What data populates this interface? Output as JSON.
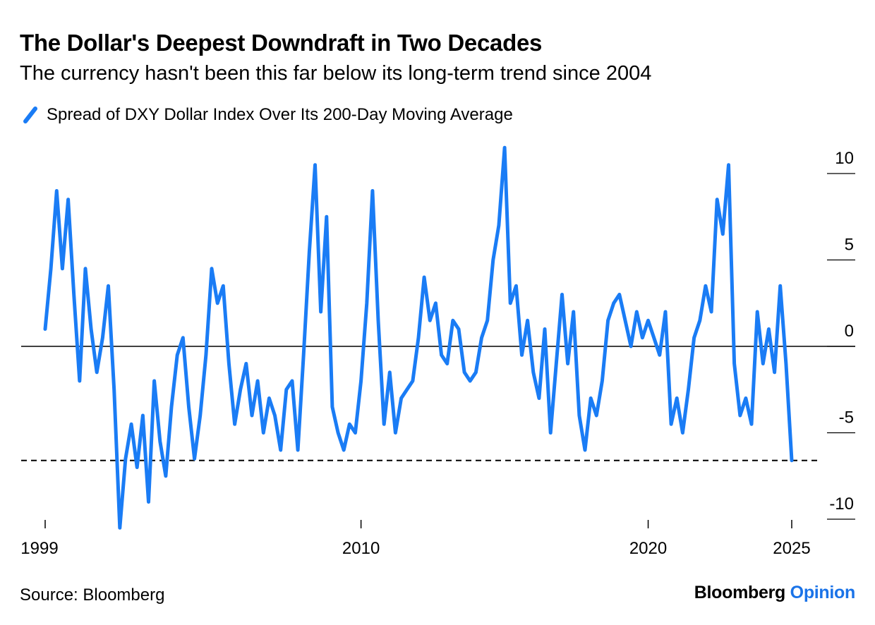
{
  "title": "The Dollar's Deepest Downdraft in Two Decades",
  "subtitle": "The currency hasn't been this far below its long-term trend since 2004",
  "source": "Source: Bloomberg",
  "brand": {
    "name": "Bloomberg",
    "section": "Opinion"
  },
  "colors": {
    "series": "#1a7cf5",
    "axis": "#000000",
    "brand_accent": "#1a73e8"
  },
  "chart_data": {
    "type": "line",
    "title": "The Dollar's Deepest Downdraft in Two Decades",
    "subtitle": "The currency hasn't been this far below its long-term trend since 2004",
    "xlabel": "",
    "ylabel": "",
    "xlim": [
      1998.8,
      2026.1
    ],
    "ylim": [
      -10.5,
      11.5
    ],
    "y_ticks": [
      10,
      5,
      0,
      -5,
      -10
    ],
    "y_tick_labels": [
      "10",
      "5",
      "0",
      "-5",
      "-10"
    ],
    "x_ticks": [
      1999,
      2010,
      2020,
      2025
    ],
    "x_tick_labels": [
      "1999",
      "2010",
      "2020",
      "2025"
    ],
    "grid": false,
    "legend_position": "top-left",
    "reference_lines": [
      {
        "y": 0,
        "style": "solid"
      },
      {
        "y": -6.6,
        "style": "dashed"
      }
    ],
    "series": [
      {
        "name": "Spread of DXY Dollar Index Over Its 200-Day Moving Average",
        "color": "#1a7cf5",
        "x": [
          1999.0,
          1999.2,
          1999.4,
          1999.6,
          1999.8,
          2000.0,
          2000.2,
          2000.4,
          2000.6,
          2000.8,
          2001.0,
          2001.2,
          2001.4,
          2001.6,
          2001.8,
          2002.0,
          2002.2,
          2002.4,
          2002.6,
          2002.8,
          2003.0,
          2003.2,
          2003.4,
          2003.6,
          2003.8,
          2004.0,
          2004.2,
          2004.4,
          2004.6,
          2004.8,
          2005.0,
          2005.2,
          2005.4,
          2005.6,
          2005.8,
          2006.0,
          2006.2,
          2006.4,
          2006.6,
          2006.8,
          2007.0,
          2007.2,
          2007.4,
          2007.6,
          2007.8,
          2008.0,
          2008.2,
          2008.4,
          2008.6,
          2008.8,
          2009.0,
          2009.2,
          2009.4,
          2009.6,
          2009.8,
          2010.0,
          2010.2,
          2010.4,
          2010.6,
          2010.8,
          2011.0,
          2011.2,
          2011.4,
          2011.6,
          2011.8,
          2012.0,
          2012.2,
          2012.4,
          2012.6,
          2012.8,
          2013.0,
          2013.2,
          2013.4,
          2013.6,
          2013.8,
          2014.0,
          2014.2,
          2014.4,
          2014.6,
          2014.8,
          2015.0,
          2015.2,
          2015.4,
          2015.6,
          2015.8,
          2016.0,
          2016.2,
          2016.4,
          2016.6,
          2016.8,
          2017.0,
          2017.2,
          2017.4,
          2017.6,
          2017.8,
          2018.0,
          2018.2,
          2018.4,
          2018.6,
          2018.8,
          2019.0,
          2019.2,
          2019.4,
          2019.6,
          2019.8,
          2020.0,
          2020.2,
          2020.4,
          2020.6,
          2020.8,
          2021.0,
          2021.2,
          2021.4,
          2021.6,
          2021.8,
          2022.0,
          2022.2,
          2022.4,
          2022.6,
          2022.8,
          2023.0,
          2023.2,
          2023.4,
          2023.6,
          2023.8,
          2024.0,
          2024.2,
          2024.4,
          2024.6,
          2024.8,
          2025.0
        ],
        "values": [
          1.0,
          4.5,
          9.0,
          4.5,
          8.5,
          3.0,
          -2.0,
          4.5,
          1.0,
          -1.5,
          0.5,
          3.5,
          -2.5,
          -10.5,
          -6.5,
          -4.5,
          -7.0,
          -4.0,
          -9.0,
          -2.0,
          -5.5,
          -7.5,
          -3.5,
          -0.5,
          0.5,
          -3.5,
          -6.5,
          -4.0,
          -0.5,
          4.5,
          2.5,
          3.5,
          -1.0,
          -4.5,
          -2.5,
          -1.0,
          -4.0,
          -2.0,
          -5.0,
          -3.0,
          -4.0,
          -6.0,
          -2.5,
          -2.0,
          -6.0,
          -0.5,
          5.5,
          10.5,
          2.0,
          7.5,
          -3.5,
          -5.0,
          -6.0,
          -4.5,
          -5.0,
          -2.0,
          2.5,
          9.0,
          1.5,
          -4.5,
          -1.5,
          -5.0,
          -3.0,
          -2.5,
          -2.0,
          0.5,
          4.0,
          1.5,
          2.5,
          -0.5,
          -1.0,
          1.5,
          1.0,
          -1.5,
          -2.0,
          -1.5,
          0.5,
          1.5,
          5.0,
          7.0,
          11.5,
          2.5,
          3.5,
          -0.5,
          1.5,
          -1.5,
          -3.0,
          1.0,
          -5.0,
          -1.0,
          3.0,
          -1.0,
          2.0,
          -4.0,
          -6.0,
          -3.0,
          -4.0,
          -2.0,
          1.5,
          2.5,
          3.0,
          1.5,
          0.0,
          2.0,
          0.5,
          1.5,
          0.5,
          -0.5,
          2.0,
          -4.5,
          -3.0,
          -5.0,
          -2.5,
          0.5,
          1.5,
          3.5,
          2.0,
          8.5,
          6.5,
          10.5,
          -1.0,
          -4.0,
          -3.0,
          -4.5,
          2.0,
          -1.0,
          1.0,
          -1.5,
          3.5,
          -1.0,
          -6.6
        ]
      }
    ]
  }
}
